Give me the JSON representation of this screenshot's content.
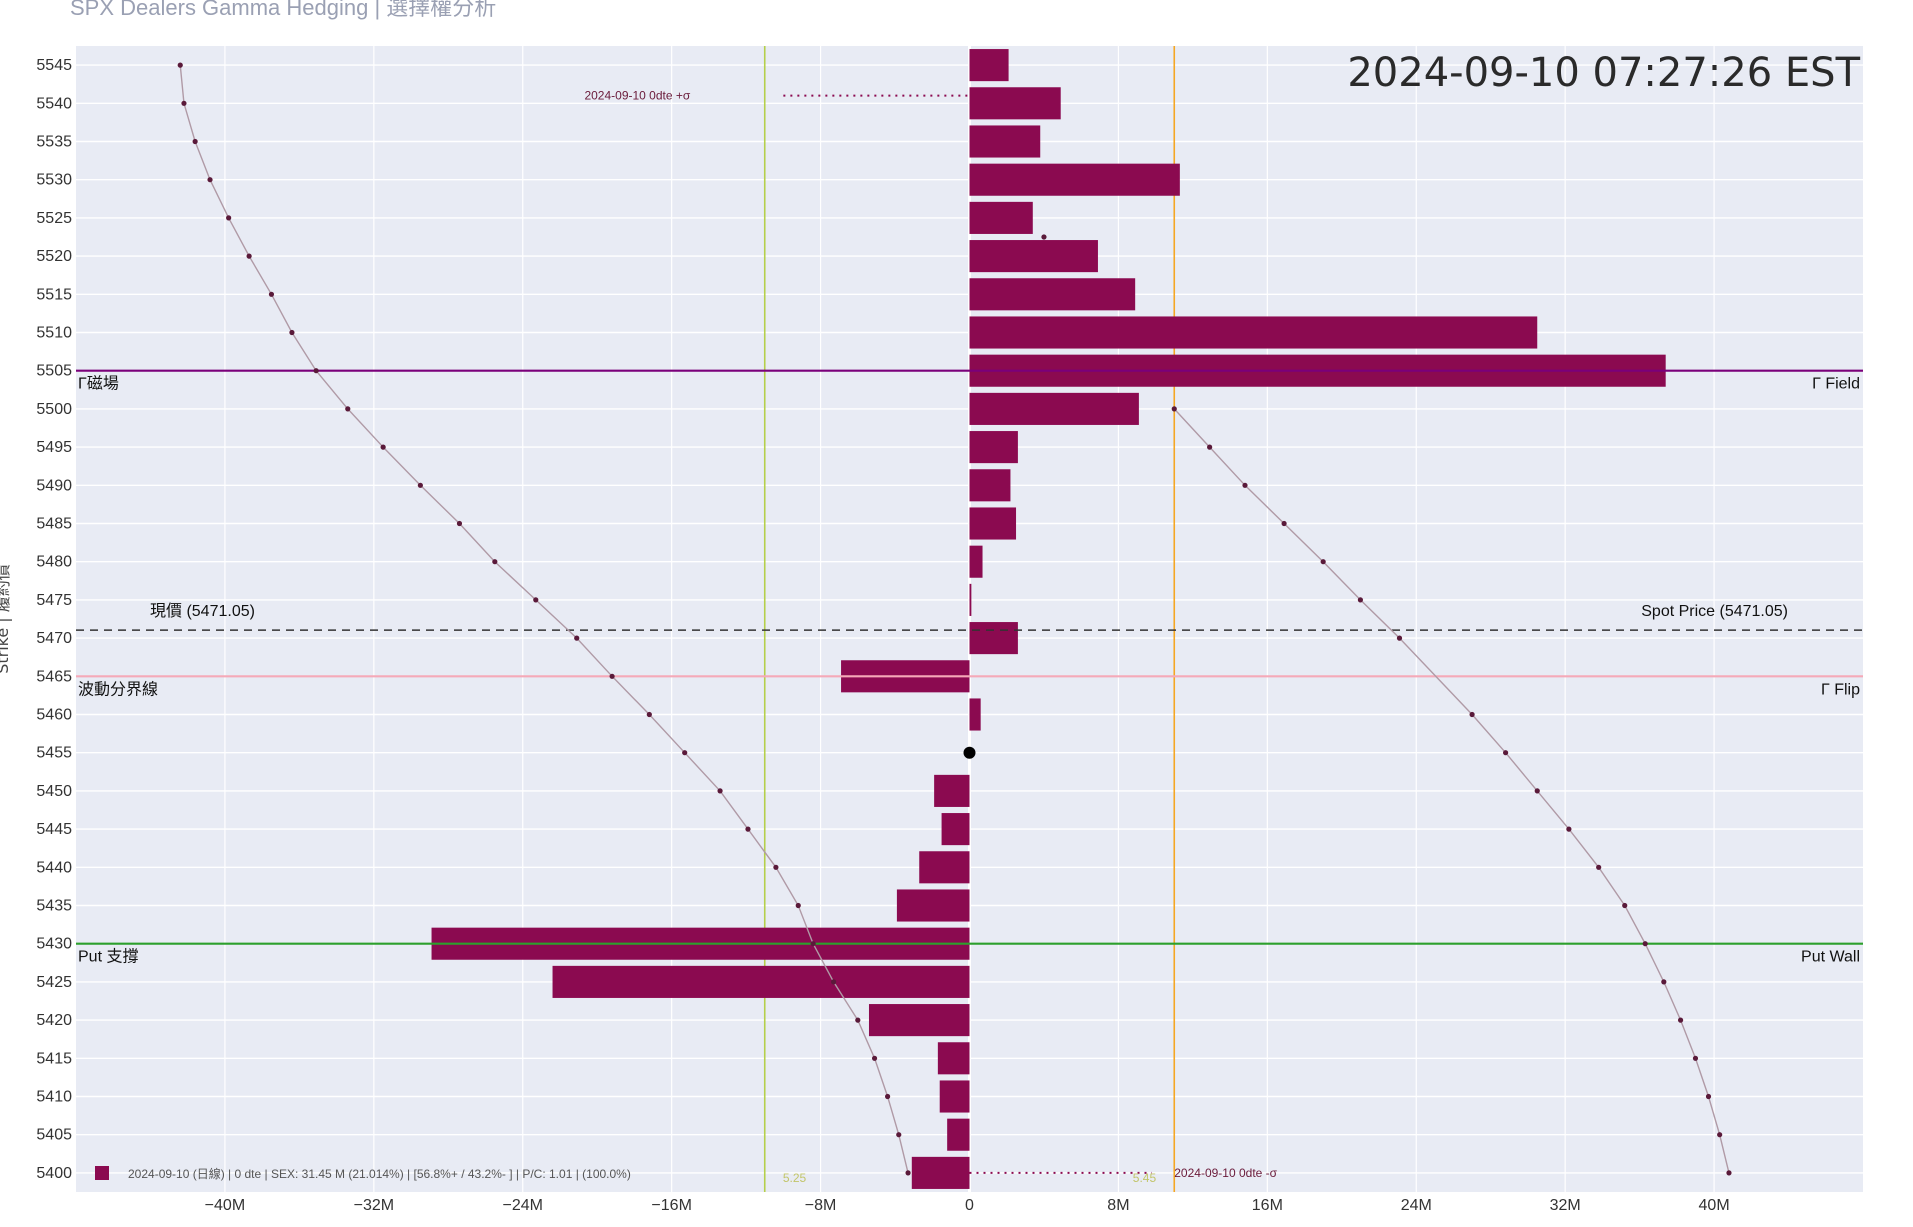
{
  "header": {
    "title_partial": "SPX Dealers Gamma Hedging | 選擇權分析"
  },
  "chart_data": {
    "type": "bar",
    "orientation": "horizontal",
    "timestamp": "2024-09-10 07:27:26 EST",
    "ylabel": "Strike | 履約價",
    "xlim": [
      -48,
      48
    ],
    "ylim": [
      5397.5,
      5547.5
    ],
    "x_unit": "M",
    "grid": true,
    "x_ticks": [
      {
        "v": -40,
        "label": "−40M"
      },
      {
        "v": -32,
        "label": "−32M"
      },
      {
        "v": -24,
        "label": "−24M"
      },
      {
        "v": -16,
        "label": "−16M"
      },
      {
        "v": -8,
        "label": "−8M"
      },
      {
        "v": 0,
        "label": "0"
      },
      {
        "v": 8,
        "label": "8M"
      },
      {
        "v": 16,
        "label": "16M"
      },
      {
        "v": 24,
        "label": "24M"
      },
      {
        "v": 32,
        "label": "32M"
      },
      {
        "v": 40,
        "label": "40M"
      }
    ],
    "strikes": [
      5545,
      5540,
      5535,
      5530,
      5525,
      5520,
      5515,
      5510,
      5505,
      5500,
      5495,
      5490,
      5485,
      5480,
      5475,
      5470,
      5465,
      5460,
      5455,
      5450,
      5445,
      5440,
      5435,
      5430,
      5425,
      5420,
      5415,
      5410,
      5405,
      5400
    ],
    "series": [
      {
        "name": "2024-09-10 (日線)",
        "color": "#8b0a50",
        "values": [
          2.1,
          4.9,
          3.8,
          11.3,
          3.4,
          6.9,
          8.9,
          30.5,
          37.4,
          9.1,
          2.6,
          2.2,
          2.5,
          0.7,
          0.1,
          2.6,
          -6.9,
          0.6,
          0,
          -1.9,
          -1.5,
          -2.7,
          -3.9,
          -28.9,
          -22.4,
          -5.4,
          -1.7,
          -1.6,
          -1.2,
          -3.1
        ]
      }
    ],
    "curves": [
      {
        "side": "call",
        "points": [
          [
            11,
            5500
          ],
          [
            12.9,
            5495
          ],
          [
            14.8,
            5490
          ],
          [
            16.9,
            5485
          ],
          [
            19,
            5480
          ],
          [
            21,
            5475
          ],
          [
            23.1,
            5470
          ],
          [
            27,
            5460
          ],
          [
            28.8,
            5455
          ],
          [
            30.5,
            5450
          ],
          [
            32.2,
            5445
          ],
          [
            33.8,
            5440
          ],
          [
            35.2,
            5435
          ],
          [
            36.3,
            5430
          ],
          [
            37.3,
            5425
          ],
          [
            38.2,
            5420
          ],
          [
            39,
            5415
          ],
          [
            39.7,
            5410
          ],
          [
            40.3,
            5405
          ],
          [
            40.8,
            5400
          ]
        ]
      },
      {
        "side": "put",
        "points": [
          [
            -42.4,
            5545
          ],
          [
            -42.2,
            5540
          ],
          [
            -41.6,
            5535
          ],
          [
            -40.8,
            5530
          ],
          [
            -39.8,
            5525
          ],
          [
            -38.7,
            5520
          ],
          [
            -37.5,
            5515
          ],
          [
            -36.4,
            5510
          ],
          [
            -35.1,
            5505
          ],
          [
            -33.4,
            5500
          ],
          [
            -31.5,
            5495
          ],
          [
            -29.5,
            5490
          ],
          [
            -27.4,
            5485
          ],
          [
            -25.5,
            5480
          ],
          [
            -23.3,
            5475
          ],
          [
            -21.1,
            5470
          ],
          [
            -19.2,
            5465
          ],
          [
            -17.2,
            5460
          ],
          [
            -15.3,
            5455
          ],
          [
            -13.4,
            5450
          ],
          [
            -11.9,
            5445
          ],
          [
            -10.4,
            5440
          ],
          [
            -9.2,
            5435
          ],
          [
            -8.4,
            5430
          ],
          [
            -7.3,
            5425
          ],
          [
            -6,
            5420
          ],
          [
            -5.1,
            5415
          ],
          [
            -4.4,
            5410
          ],
          [
            -3.8,
            5405
          ],
          [
            -3.3,
            5400
          ]
        ]
      }
    ],
    "curve_upper_marker": [
      4,
      5522.5
    ],
    "spot_marker": [
      0,
      5455
    ],
    "vertical_lines": [
      {
        "x": -11,
        "color": "#b5cf4a"
      },
      {
        "x": 11,
        "color": "#f5a623"
      }
    ],
    "hlines": [
      {
        "y": 5505,
        "color": "#7a007a",
        "style": "solid",
        "left_label": "Γ磁場",
        "right_label": "Γ Field"
      },
      {
        "y": 5471.05,
        "color": "#333333",
        "style": "dashed",
        "left_label": "現價 (5471.05)",
        "right_label": "Spot Price (5471.05)"
      },
      {
        "y": 5465,
        "color": "#f5a9b8",
        "style": "solid",
        "left_label": "波動分界線",
        "right_label": "Γ Flip"
      },
      {
        "y": 5430,
        "color": "#2ca02c",
        "style": "solid",
        "left_label": "Put 支撐",
        "right_label": "Put Wall"
      }
    ],
    "annotations": [
      {
        "text": "2024-09-10 0dte +σ",
        "x": -15,
        "y": 5541,
        "dotted_from": -10,
        "dotted_to": 0,
        "color": "#8b0a50",
        "anchor": "end"
      },
      {
        "text": "2024-09-10 0dte -σ",
        "x": 11,
        "y": 5400,
        "dotted_from": 0,
        "dotted_to": 9.8,
        "color": "#8b0a50",
        "anchor": "start"
      }
    ],
    "small_bottom_labels": [
      {
        "text": "5.25",
        "x": -9.4
      },
      {
        "text": "5.45",
        "x": 9.4
      }
    ],
    "legend": {
      "placement": "bottom-left",
      "color": "#8b0a50",
      "text": "2024-09-10 (日線) | 0 dte | SEX: 31.45 M (21.014%) | [56.8%+ / 43.2%- ] | P/C: 1.01 | (100.0%)"
    }
  }
}
